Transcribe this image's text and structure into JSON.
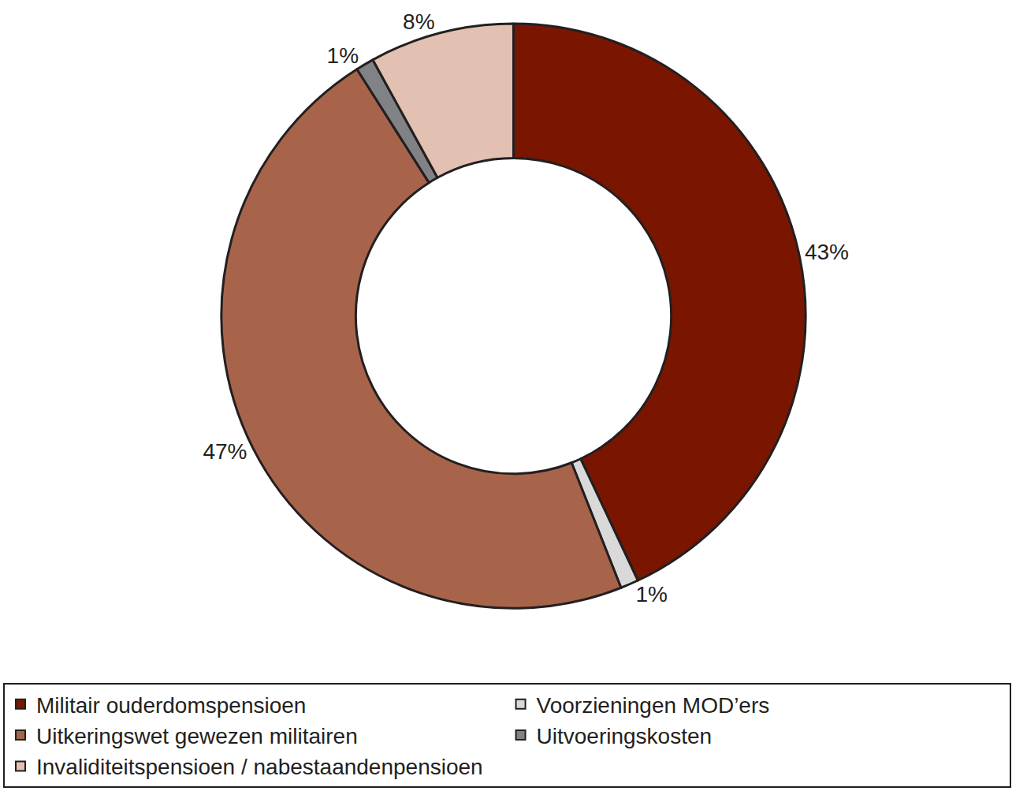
{
  "chart_data": {
    "type": "donut",
    "categories": [
      "Militair ouderdomspensioen",
      "Voorzieningen MOD’ers",
      "Uitkeringswet gewezen militairen",
      "Uitvoeringskosten",
      "Invaliditeitspensioen / nabestaandenpensioen"
    ],
    "values": [
      43,
      1,
      47,
      1,
      8
    ],
    "value_labels": [
      "43%",
      "1%",
      "47%",
      "1%",
      "8%"
    ],
    "colors": [
      "#7a1600",
      "#d9d9d9",
      "#a8644b",
      "#808285",
      "#e2c0b2"
    ],
    "data_labels": true,
    "legend": "bottom"
  }
}
